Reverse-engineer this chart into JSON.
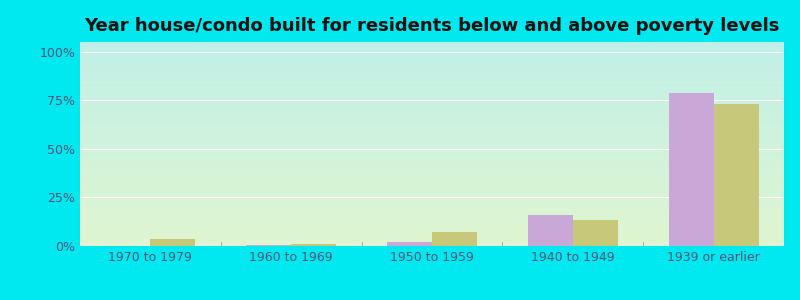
{
  "title": "Year house/condo built for residents below and above poverty levels",
  "categories": [
    "1970 to 1979",
    "1960 to 1969",
    "1950 to 1959",
    "1940 to 1949",
    "1939 or earlier"
  ],
  "below_poverty": [
    0.0,
    0.3,
    2.0,
    16.0,
    79.0
  ],
  "above_poverty": [
    3.5,
    1.0,
    7.0,
    13.5,
    73.0
  ],
  "below_color": "#c9a8d8",
  "above_color": "#c8c87a",
  "background_color": "#00e8f0",
  "plot_bg_top_left": "#b8f0e8",
  "plot_bg_bottom_right": "#e8f5d8",
  "ylabel_ticks": [
    "0%",
    "25%",
    "50%",
    "75%",
    "100%"
  ],
  "ytick_vals": [
    0,
    25,
    50,
    75,
    100
  ],
  "ylim": [
    0,
    105
  ],
  "bar_width": 0.32,
  "title_fontsize": 13,
  "tick_fontsize": 9,
  "legend_fontsize": 9,
  "tick_color": "#555577"
}
